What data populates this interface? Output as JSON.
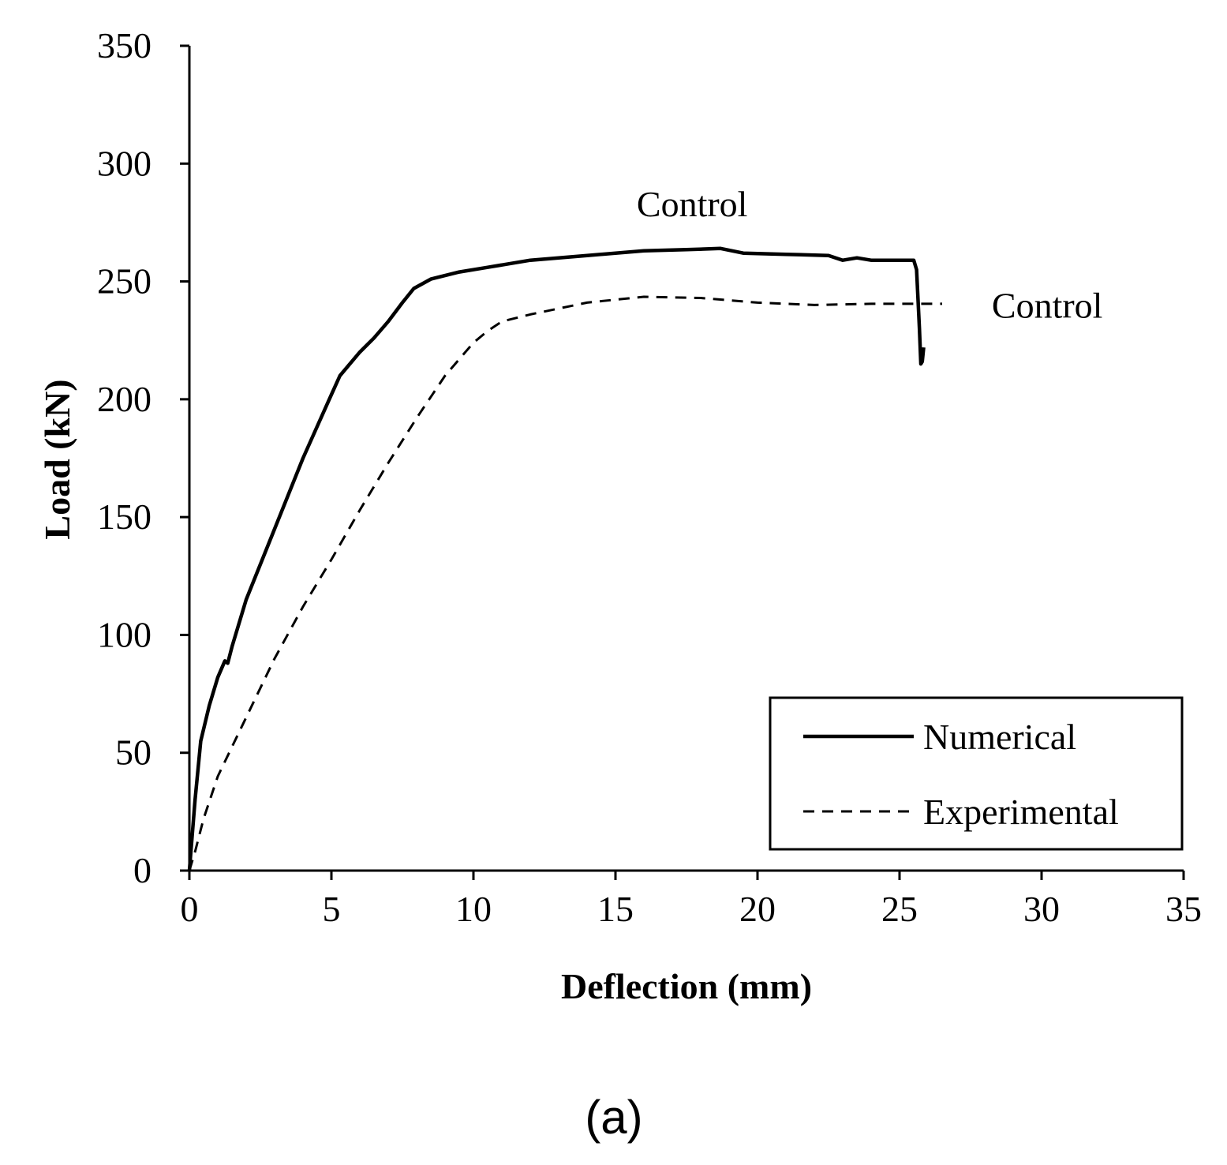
{
  "chart_data": {
    "type": "line",
    "title": "",
    "panel_label": "(a)",
    "xlabel": "Deflection (mm)",
    "ylabel": "Load (kN)",
    "xlim": [
      0,
      35
    ],
    "ylim": [
      0,
      350
    ],
    "x_ticks": [
      0,
      5,
      10,
      15,
      20,
      25,
      30,
      35
    ],
    "y_ticks": [
      0,
      50,
      100,
      150,
      200,
      250,
      300,
      350
    ],
    "grid": false,
    "legend_position": "bottom-right",
    "series": [
      {
        "name": "Numerical",
        "style": "solid",
        "color": "#000000",
        "x": [
          0,
          0.2,
          0.4,
          0.7,
          1.0,
          1.25,
          1.35,
          1.5,
          2.0,
          3.0,
          4.0,
          5.0,
          5.3,
          6.0,
          6.5,
          7.0,
          7.5,
          7.9,
          8.5,
          9.5,
          10.5,
          12.0,
          14.0,
          16.0,
          17.5,
          18.7,
          19.5,
          21.0,
          22.5,
          23.0,
          23.5,
          24.0,
          25.0,
          25.5,
          25.6,
          25.7,
          25.75,
          25.8,
          25.85
        ],
        "y": [
          0,
          30,
          55,
          70,
          82,
          89,
          88,
          95,
          115,
          145,
          175,
          202,
          210,
          220,
          226,
          233,
          241,
          247,
          251,
          254,
          256,
          259,
          261,
          263,
          263.5,
          264,
          262,
          261.5,
          261,
          259,
          260,
          259,
          259,
          259,
          255,
          230,
          215,
          216,
          222
        ]
      },
      {
        "name": "Experimental",
        "style": "dashed",
        "color": "#000000",
        "x": [
          0,
          0.2,
          0.5,
          1.0,
          2.0,
          3.0,
          4.0,
          5.0,
          6.0,
          7.0,
          8.0,
          9.0,
          10.0,
          10.5,
          11.0,
          12.0,
          14.0,
          16.0,
          18.0,
          20.0,
          22.0,
          24.0,
          25.5,
          26.5
        ],
        "y": [
          0,
          8,
          22,
          40,
          65,
          90,
          112,
          132,
          153,
          173,
          192,
          210,
          224,
          229,
          233,
          236,
          241,
          243.5,
          243,
          241,
          240,
          240.5,
          240.5,
          240.5
        ]
      }
    ],
    "annotations": [
      {
        "text": "Control",
        "x": 17.7,
        "y": 283,
        "target": "Numerical"
      },
      {
        "text": "Control",
        "x": 30.2,
        "y": 240,
        "target": "Experimental"
      }
    ]
  }
}
